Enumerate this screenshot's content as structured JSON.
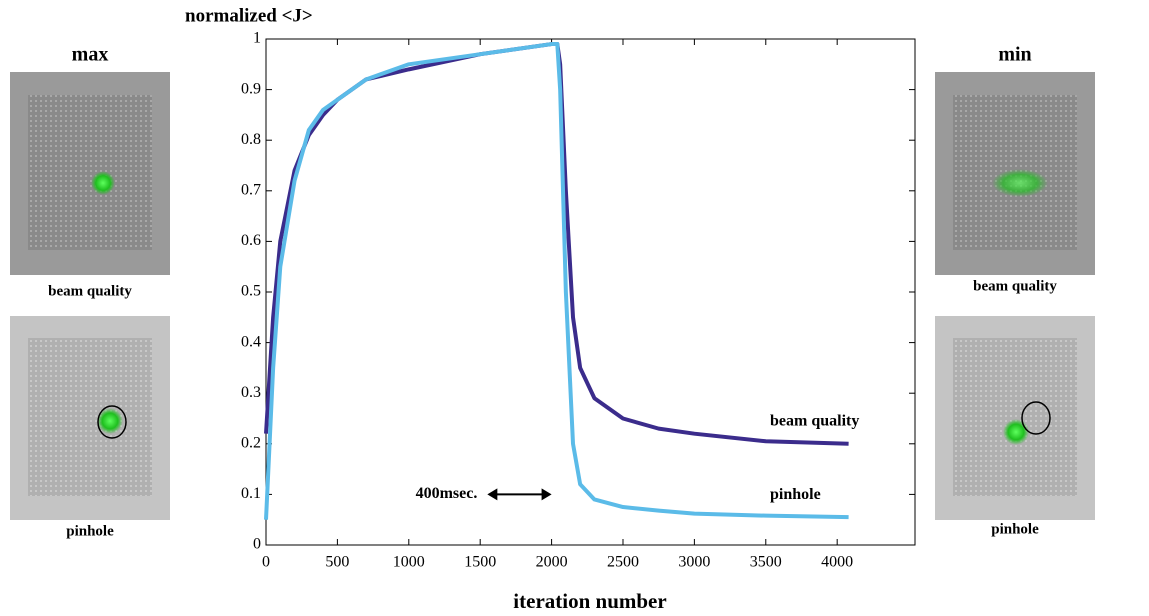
{
  "chart_data": {
    "type": "line",
    "ylabel": "normalized <J>",
    "xlabel": "iteration number",
    "xlim": [
      0,
      4545
    ],
    "ylim": [
      0,
      1
    ],
    "xticks": [
      0,
      500,
      1000,
      1500,
      2000,
      2500,
      3000,
      3500,
      4000
    ],
    "yticks": [
      0,
      0.1,
      0.2,
      0.3,
      0.4,
      0.5,
      0.6,
      0.7,
      0.8,
      0.9,
      1
    ],
    "grid": false,
    "x": [
      0,
      50,
      100,
      200,
      300,
      400,
      500,
      700,
      1000,
      1500,
      2000,
      2040,
      2060,
      2100,
      2150,
      2200,
      2300,
      2500,
      2750,
      3000,
      3500,
      4080
    ],
    "series": [
      {
        "name": "beam quality",
        "color": "#3b2c8c",
        "values": [
          0.22,
          0.45,
          0.6,
          0.74,
          0.81,
          0.85,
          0.88,
          0.92,
          0.94,
          0.97,
          0.99,
          0.99,
          0.95,
          0.7,
          0.45,
          0.35,
          0.29,
          0.25,
          0.23,
          0.22,
          0.205,
          0.2
        ]
      },
      {
        "name": "pinhole",
        "color": "#5bbbe8",
        "values": [
          0.05,
          0.35,
          0.55,
          0.72,
          0.82,
          0.86,
          0.88,
          0.92,
          0.95,
          0.97,
          0.99,
          0.99,
          0.9,
          0.5,
          0.2,
          0.12,
          0.09,
          0.075,
          0.068,
          0.062,
          0.058,
          0.055
        ]
      }
    ],
    "annotations": [
      {
        "text": "400msec.",
        "x0": 1550,
        "x1": 2000,
        "y": 0.1
      }
    ]
  },
  "panels": [
    {
      "title": "max",
      "captions": [
        "beam quality",
        "pinhole"
      ]
    },
    {
      "title": "min",
      "captions": [
        "beam quality",
        "pinhole"
      ]
    }
  ]
}
